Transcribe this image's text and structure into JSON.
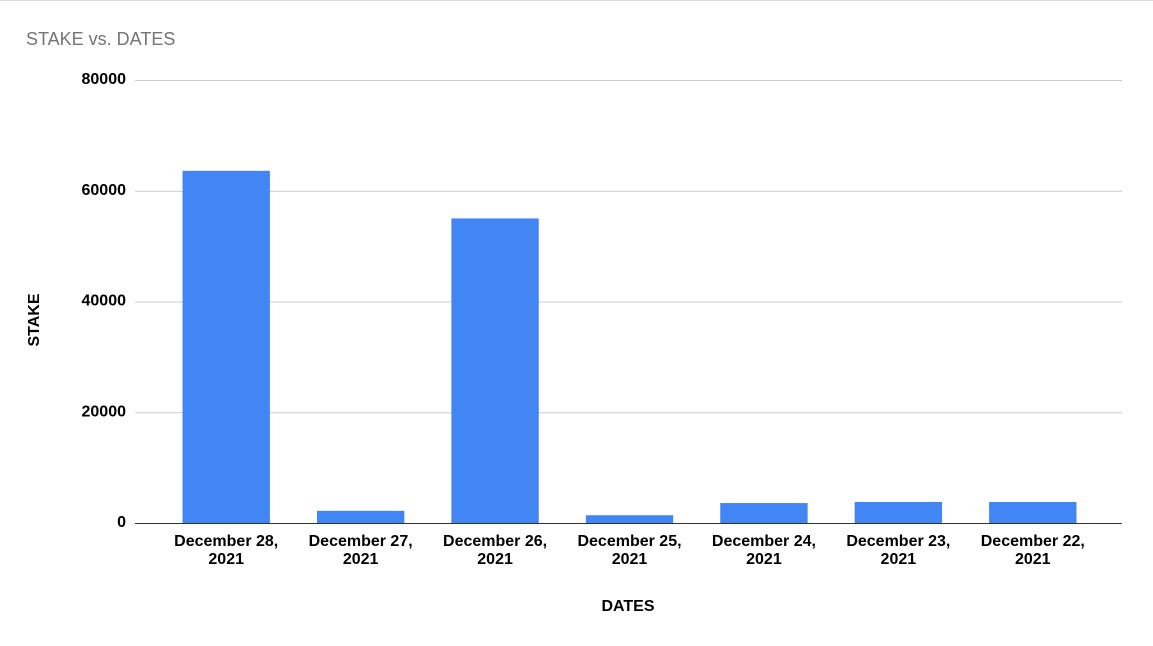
{
  "chart_data": {
    "type": "bar",
    "title": "STAKE vs. DATES",
    "x_label": "DATES",
    "y_label": "STAKE",
    "categories": [
      "December 28, 2021",
      "December 27, 2021",
      "December 26, 2021",
      "December 25, 2021",
      "December 24, 2021",
      "December 23, 2021",
      "December 22, 2021"
    ],
    "values": [
      63600,
      2200,
      55000,
      1400,
      3600,
      3800,
      3800
    ],
    "color": "#4285f4",
    "ylim": [
      0,
      80000
    ],
    "yticks": [
      0,
      20000,
      40000,
      60000,
      80000
    ],
    "grid": true
  }
}
